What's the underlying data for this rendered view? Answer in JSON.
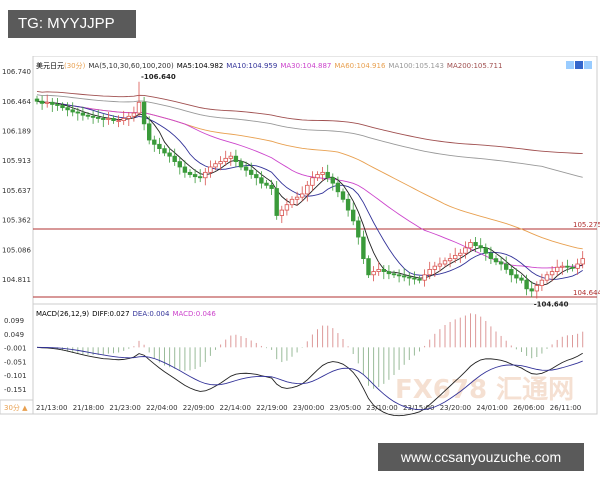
{
  "overlay": {
    "tg_label": "TG: MYYJJPP",
    "site": "www.ccsanyouzuche.com",
    "logo": "FX678 汇通网"
  },
  "header": {
    "symbol": "美元日元",
    "period": "(30分)",
    "ma_label": "MA(5,10,30,60,100,200)",
    "ma5": "MA5:104.982",
    "ma10": "MA10:104.959",
    "ma30": "MA30:104.887",
    "ma60": "MA60:104.916",
    "ma100": "MA100:105.143",
    "ma200": "MA200:105.711"
  },
  "macd_header": {
    "label": "MACD(26,12,9)",
    "diff": "DIFF:0.027",
    "dea": "DEA:0.004",
    "macd": "MACD:0.046"
  },
  "period_button": "30分 ▲",
  "colors": {
    "up": "#d9534f",
    "down": "#3a9a3a",
    "ma5": "#222222",
    "ma10": "#333399",
    "ma30": "#cc44cc",
    "ma60": "#e8a050",
    "ma100": "#999999",
    "ma200": "#a05050",
    "hline": "#b03030"
  },
  "chart_data": {
    "type": "candlestick",
    "price_ticks": [
      "106.740",
      "106.464",
      "106.189",
      "105.913",
      "105.637",
      "105.362",
      "105.086",
      "104.811"
    ],
    "price_range": [
      104.6,
      106.74
    ],
    "macd_ticks": [
      "0.099",
      "0.049",
      "-0.001",
      "-0.051",
      "-0.101",
      "-0.151"
    ],
    "macd_range": [
      -0.19,
      0.11
    ],
    "x_labels": [
      "21/13:00",
      "21/18:00",
      "21/23:00",
      "22/04:00",
      "22/09:00",
      "22/14:00",
      "22/19:00",
      "23/00:00",
      "23/05:00",
      "23/10:00",
      "23/15:00",
      "23/20:00",
      "24/01:00",
      "26/06:00",
      "26/11:00"
    ],
    "high_annotation": {
      "value": "106.640",
      "index": 20
    },
    "low_annotation": {
      "value": "104.640",
      "index": 97
    },
    "hlines": [
      {
        "value": 105.275,
        "label": "105.275"
      },
      {
        "value": 104.644,
        "label": "104.644"
      }
    ],
    "closes": [
      106.46,
      106.44,
      106.45,
      106.43,
      106.42,
      106.4,
      106.38,
      106.36,
      106.35,
      106.33,
      106.32,
      106.31,
      106.3,
      106.29,
      106.3,
      106.28,
      106.28,
      106.3,
      106.32,
      106.35,
      106.45,
      106.25,
      106.1,
      106.06,
      106.02,
      105.98,
      105.95,
      105.9,
      105.85,
      105.8,
      105.78,
      105.76,
      105.75,
      105.8,
      105.85,
      105.88,
      105.9,
      105.93,
      105.95,
      105.9,
      105.85,
      105.82,
      105.78,
      105.75,
      105.7,
      105.68,
      105.65,
      105.4,
      105.45,
      105.5,
      105.55,
      105.57,
      105.6,
      105.68,
      105.75,
      105.78,
      105.8,
      105.75,
      105.7,
      105.62,
      105.55,
      105.45,
      105.35,
      105.2,
      105.0,
      104.85,
      104.88,
      104.9,
      104.88,
      104.86,
      104.85,
      104.84,
      104.83,
      104.82,
      104.81,
      104.8,
      104.85,
      104.9,
      104.93,
      104.95,
      104.98,
      105.0,
      105.03,
      105.05,
      105.1,
      105.15,
      105.12,
      105.1,
      105.05,
      105.0,
      104.97,
      104.95,
      104.9,
      104.85,
      104.82,
      104.8,
      104.72,
      104.7,
      104.75,
      104.8,
      104.85,
      104.88,
      104.92,
      104.93,
      104.92,
      104.91,
      104.95,
      105.0
    ]
  }
}
